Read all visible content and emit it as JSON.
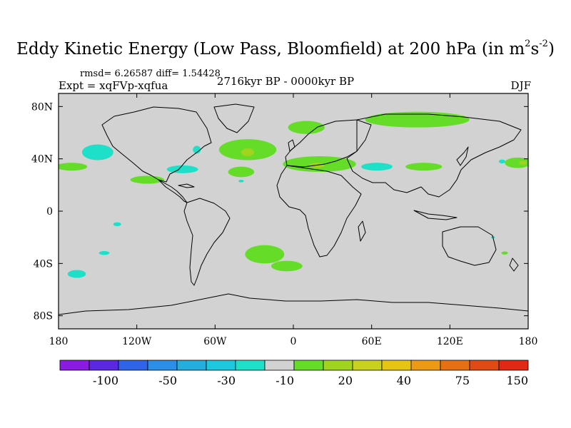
{
  "title": {
    "main": "Eddy Kinetic Energy (Low Pass, Bloomfield) at 200 hPa (in m",
    "sup1": "2",
    "mid": "s",
    "sup2": "-2",
    "end": ")"
  },
  "stats": "rmsd= 6.26587 diff= 1.54428",
  "experiment": "Expt = xqFVp-xqfua",
  "period": "2716kyr BP - 0000kyr BP",
  "season": "DJF",
  "axes": {
    "lon_ticks": [
      {
        "lon": -180,
        "label": "180"
      },
      {
        "lon": -120,
        "label": "120W"
      },
      {
        "lon": -60,
        "label": "60W"
      },
      {
        "lon": 0,
        "label": "0"
      },
      {
        "lon": 60,
        "label": "60E"
      },
      {
        "lon": 120,
        "label": "120E"
      },
      {
        "lon": 180,
        "label": "180"
      }
    ],
    "lat_ticks": [
      {
        "lat": 80,
        "label": "80N"
      },
      {
        "lat": 40,
        "label": "40N"
      },
      {
        "lat": 0,
        "label": "0"
      },
      {
        "lat": -40,
        "label": "40S"
      },
      {
        "lat": -80,
        "label": "80S"
      }
    ],
    "lon_range": [
      -180,
      180
    ],
    "lat_range": [
      -90,
      90
    ]
  },
  "colorbar": {
    "colors": [
      "#8a1be0",
      "#5a28e0",
      "#2f64e8",
      "#2b8fe8",
      "#23aede",
      "#1dc8de",
      "#1ee0c8",
      "#d2d2d2",
      "#64dc28",
      "#a0d41e",
      "#c8d21e",
      "#e6c414",
      "#ec9a14",
      "#e67014",
      "#e04a14",
      "#e02814"
    ],
    "labels": [
      {
        "boundary": 2,
        "text": "-100"
      },
      {
        "boundary": 4,
        "text": "-50"
      },
      {
        "boundary": 6,
        "text": "-30"
      },
      {
        "boundary": 8,
        "text": "-10"
      },
      {
        "boundary": 10,
        "text": "20"
      },
      {
        "boundary": 12,
        "text": "40"
      },
      {
        "boundary": 14,
        "text": "75"
      },
      {
        "boundary": 16,
        "text": "150"
      }
    ]
  },
  "field": {
    "background": "#d2d2d2",
    "regions": [
      {
        "name": "north-pacific-negative",
        "level": "-10",
        "color": "#1ee0c8",
        "lon": -150,
        "lat": 45,
        "rlon": 12,
        "rlat": 6
      },
      {
        "name": "north-america-east-negative",
        "level": "-10",
        "color": "#1ee0c8",
        "lon": -74,
        "lat": 47,
        "rlon": 3,
        "rlat": 3
      },
      {
        "name": "gulf-coast-negative",
        "level": "-10",
        "color": "#1ee0c8",
        "lon": -85,
        "lat": 32,
        "rlon": 12,
        "rlat": 3
      },
      {
        "name": "atlantic-small-negative",
        "level": "-10",
        "color": "#1ee0c8",
        "lon": -40,
        "lat": 23,
        "rlon": 2,
        "rlat": 1
      },
      {
        "name": "tropical-pacific-negative",
        "level": "-10",
        "color": "#1ee0c8",
        "lon": -135,
        "lat": -10,
        "rlon": 3,
        "rlat": 1.5
      },
      {
        "name": "south-pacific-negative-1",
        "level": "-10",
        "color": "#1ee0c8",
        "lon": -145,
        "lat": -32,
        "rlon": 4,
        "rlat": 1.5
      },
      {
        "name": "south-pacific-negative-2",
        "level": "-10",
        "color": "#1ee0c8",
        "lon": -166,
        "lat": -48,
        "rlon": 7,
        "rlat": 3
      },
      {
        "name": "east-asia-negative",
        "level": "-10",
        "color": "#1ee0c8",
        "lon": 64,
        "lat": 34,
        "rlon": 12,
        "rlat": 3
      },
      {
        "name": "north-pacific-west-negative",
        "level": "-10",
        "color": "#1ee0c8",
        "lon": 160,
        "lat": 38,
        "rlon": 2.5,
        "rlat": 1.5
      },
      {
        "name": "australia-negative",
        "level": "-10",
        "color": "#1ee0c8",
        "lon": 153,
        "lat": -20,
        "rlon": 1.5,
        "rlat": 1
      },
      {
        "name": "north-atlantic-positive",
        "level": "20",
        "color": "#64dc28",
        "lon": -35,
        "lat": 47,
        "rlon": 22,
        "rlat": 8
      },
      {
        "name": "mediterranean-positive",
        "level": "20",
        "color": "#64dc28",
        "lon": 20,
        "lat": 36,
        "rlon": 28,
        "rlat": 6
      },
      {
        "name": "europe-north-positive",
        "level": "20",
        "color": "#64dc28",
        "lon": 10,
        "lat": 64,
        "rlon": 14,
        "rlat": 5
      },
      {
        "name": "siberia-positive",
        "level": "20",
        "color": "#64dc28",
        "lon": 95,
        "lat": 70,
        "rlon": 40,
        "rlat": 6
      },
      {
        "name": "central-asia-positive",
        "level": "20",
        "color": "#64dc28",
        "lon": 100,
        "lat": 34,
        "rlon": 14,
        "rlat": 3
      },
      {
        "name": "west-pacific-positive",
        "level": "20",
        "color": "#64dc28",
        "lon": 172,
        "lat": 37,
        "rlon": 10,
        "rlat": 4
      },
      {
        "name": "east-pacific-positive",
        "level": "20",
        "color": "#64dc28",
        "lon": -170,
        "lat": 34,
        "rlon": 12,
        "rlat": 3
      },
      {
        "name": "mexico-positive",
        "level": "20",
        "color": "#64dc28",
        "lon": -112,
        "lat": 24,
        "rlon": 13,
        "rlat": 3
      },
      {
        "name": "atlantic-mid-positive",
        "level": "20",
        "color": "#64dc28",
        "lon": -40,
        "lat": 30,
        "rlon": 10,
        "rlat": 4
      },
      {
        "name": "south-atlantic-positive",
        "level": "20",
        "color": "#64dc28",
        "lon": -22,
        "lat": -33,
        "rlon": 15,
        "rlat": 7
      },
      {
        "name": "south-atlantic-lower-positive",
        "level": "20",
        "color": "#64dc28",
        "lon": -5,
        "lat": -42,
        "rlon": 12,
        "rlat": 4
      },
      {
        "name": "south-pacific-small-positive",
        "level": "20",
        "color": "#64dc28",
        "lon": 162,
        "lat": -32,
        "rlon": 2.5,
        "rlat": 1.2
      },
      {
        "name": "north-atlantic-core-positive",
        "level": "40",
        "color": "#a0d41e",
        "lon": -35,
        "lat": 45,
        "rlon": 5,
        "rlat": 3
      },
      {
        "name": "mediterranean-core-positive",
        "level": "40",
        "color": "#a0d41e",
        "lon": 18,
        "lat": 35,
        "rlon": 6,
        "rlat": 2
      },
      {
        "name": "west-pacific-core-positive",
        "level": "40",
        "color": "#a0d41e",
        "lon": 176,
        "lat": 37,
        "rlon": 3,
        "rlat": 1.5
      }
    ]
  }
}
